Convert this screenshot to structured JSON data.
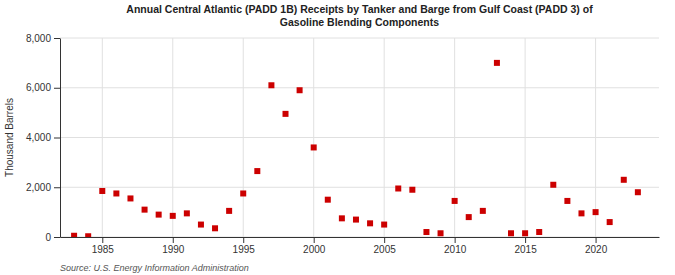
{
  "chart_data": {
    "type": "scatter",
    "title": "Annual Central Atlantic (PADD 1B) Receipts by Tanker and Barge from Gulf Coast (PADD 3) of\nGasoline Blending Components",
    "ylabel": "Thousand Barrels",
    "annotations": [
      "Source: U.S. Energy Information Administration"
    ],
    "x": [
      1983,
      1984,
      1985,
      1986,
      1987,
      1988,
      1989,
      1990,
      1991,
      1992,
      1993,
      1994,
      1995,
      1996,
      1997,
      1998,
      1999,
      2000,
      2001,
      2002,
      2003,
      2004,
      2005,
      2006,
      2007,
      2008,
      2009,
      2010,
      2011,
      2012,
      2013,
      2014,
      2015,
      2016,
      2017,
      2018,
      2019,
      2020,
      2021,
      2022,
      2023
    ],
    "values": [
      50,
      30,
      1850,
      1750,
      1550,
      1100,
      900,
      850,
      950,
      500,
      350,
      1050,
      1750,
      2650,
      6100,
      4950,
      5900,
      3600,
      1500,
      750,
      700,
      550,
      500,
      1950,
      1900,
      200,
      150,
      1450,
      800,
      1050,
      7000,
      150,
      150,
      200,
      2100,
      1450,
      950,
      1000,
      600,
      2300,
      1800
    ],
    "color": "#cc0000",
    "marker": "square",
    "xlim": [
      1982,
      2024.5
    ],
    "xticks": [
      1985,
      1990,
      1995,
      2000,
      2005,
      2010,
      2015,
      2020
    ],
    "ylim": [
      0,
      8000
    ],
    "yticks": [
      0,
      {
        "value": 2000,
        "label": "2,000"
      },
      {
        "value": 4000,
        "label": "4,000"
      },
      {
        "value": 6000,
        "label": "6,000"
      },
      {
        "value": 8000,
        "label": "8,000"
      }
    ],
    "grid": true
  }
}
